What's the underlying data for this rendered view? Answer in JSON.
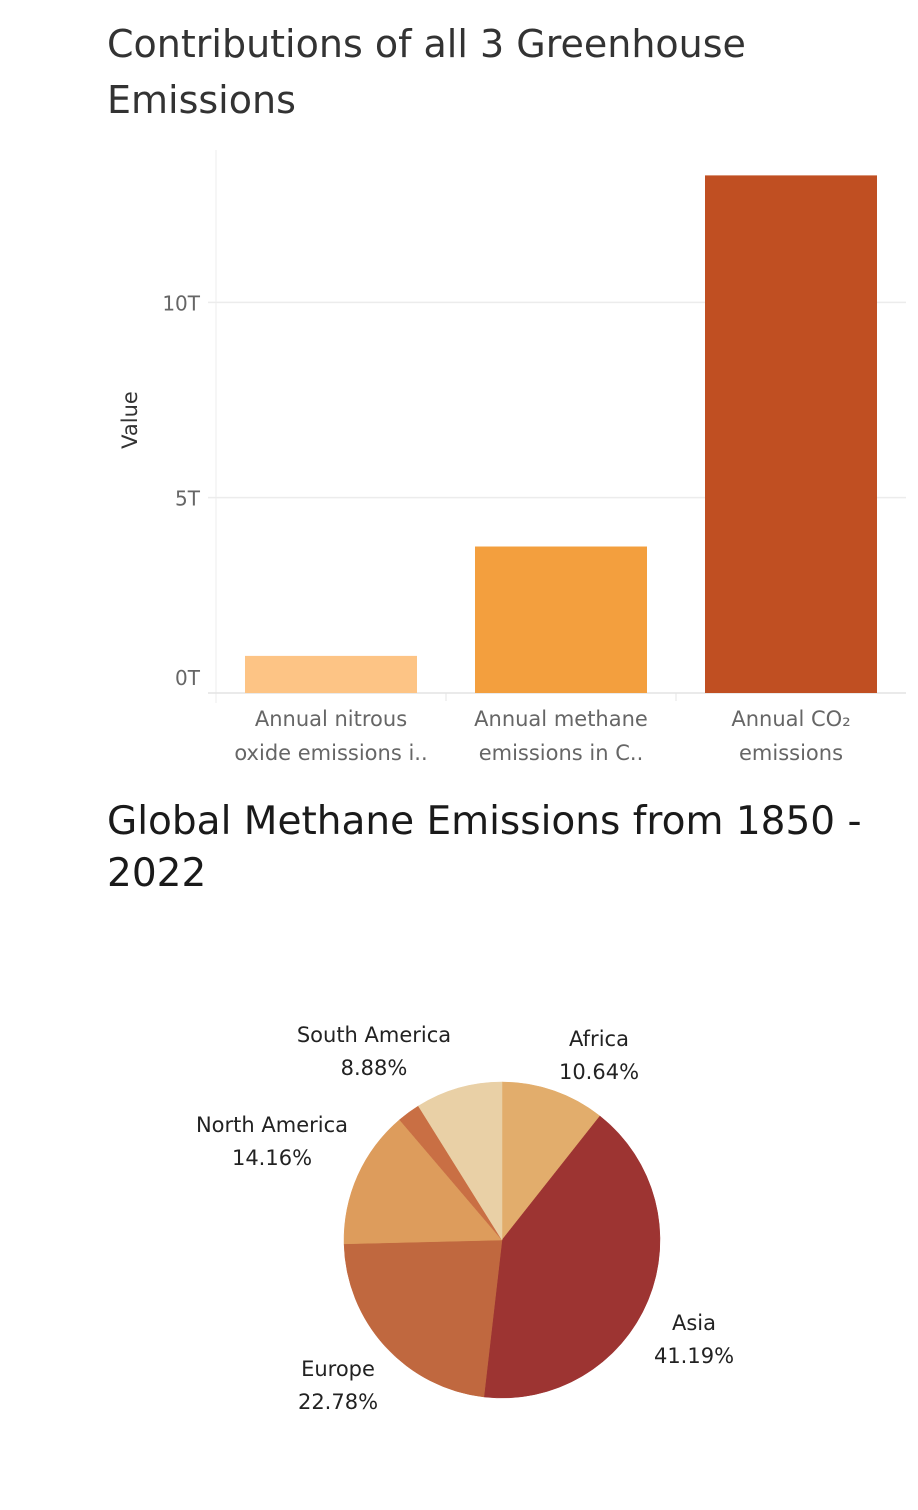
{
  "chart_data": [
    {
      "type": "bar",
      "title": "Contributions of all 3 Greenhouse Emissions",
      "ylabel": "Value",
      "ylim": [
        0,
        13.9
      ],
      "y_unit": "T",
      "y_ticks": [
        {
          "value": 0,
          "label": "0T"
        },
        {
          "value": 5,
          "label": "5T"
        },
        {
          "value": 10,
          "label": "10T"
        }
      ],
      "grid": true,
      "categories": [
        {
          "lines": [
            "Annual nitrous",
            "oxide emissions i.."
          ]
        },
        {
          "lines": [
            "Annual methane",
            "emissions in C.."
          ]
        },
        {
          "lines": [
            "Annual CO₂",
            "emissions"
          ]
        }
      ],
      "values": [
        0.95,
        3.75,
        13.25
      ],
      "colors": [
        "#fdc485",
        "#f39f3e",
        "#c04f22"
      ]
    },
    {
      "type": "pie",
      "title": "Global Methane Emissions from 1850 - 2022",
      "slices": [
        {
          "label": "Africa",
          "percent": 10.64,
          "percent_label": "10.64%",
          "color": "#e2ad6c"
        },
        {
          "label": "Asia",
          "percent": 41.19,
          "percent_label": "41.19%",
          "color": "#9d3432"
        },
        {
          "label": "Europe",
          "percent": 22.78,
          "percent_label": "22.78%",
          "color": "#c0683f"
        },
        {
          "label": "North America",
          "percent": 14.16,
          "percent_label": "14.16%",
          "color": "#dd9c5c"
        },
        {
          "label": "",
          "percent": 2.35,
          "percent_label": "",
          "color": "#c96f44"
        },
        {
          "label": "South America",
          "percent": 8.88,
          "percent_label": "8.88%",
          "color": "#e9d0a6"
        }
      ]
    }
  ]
}
